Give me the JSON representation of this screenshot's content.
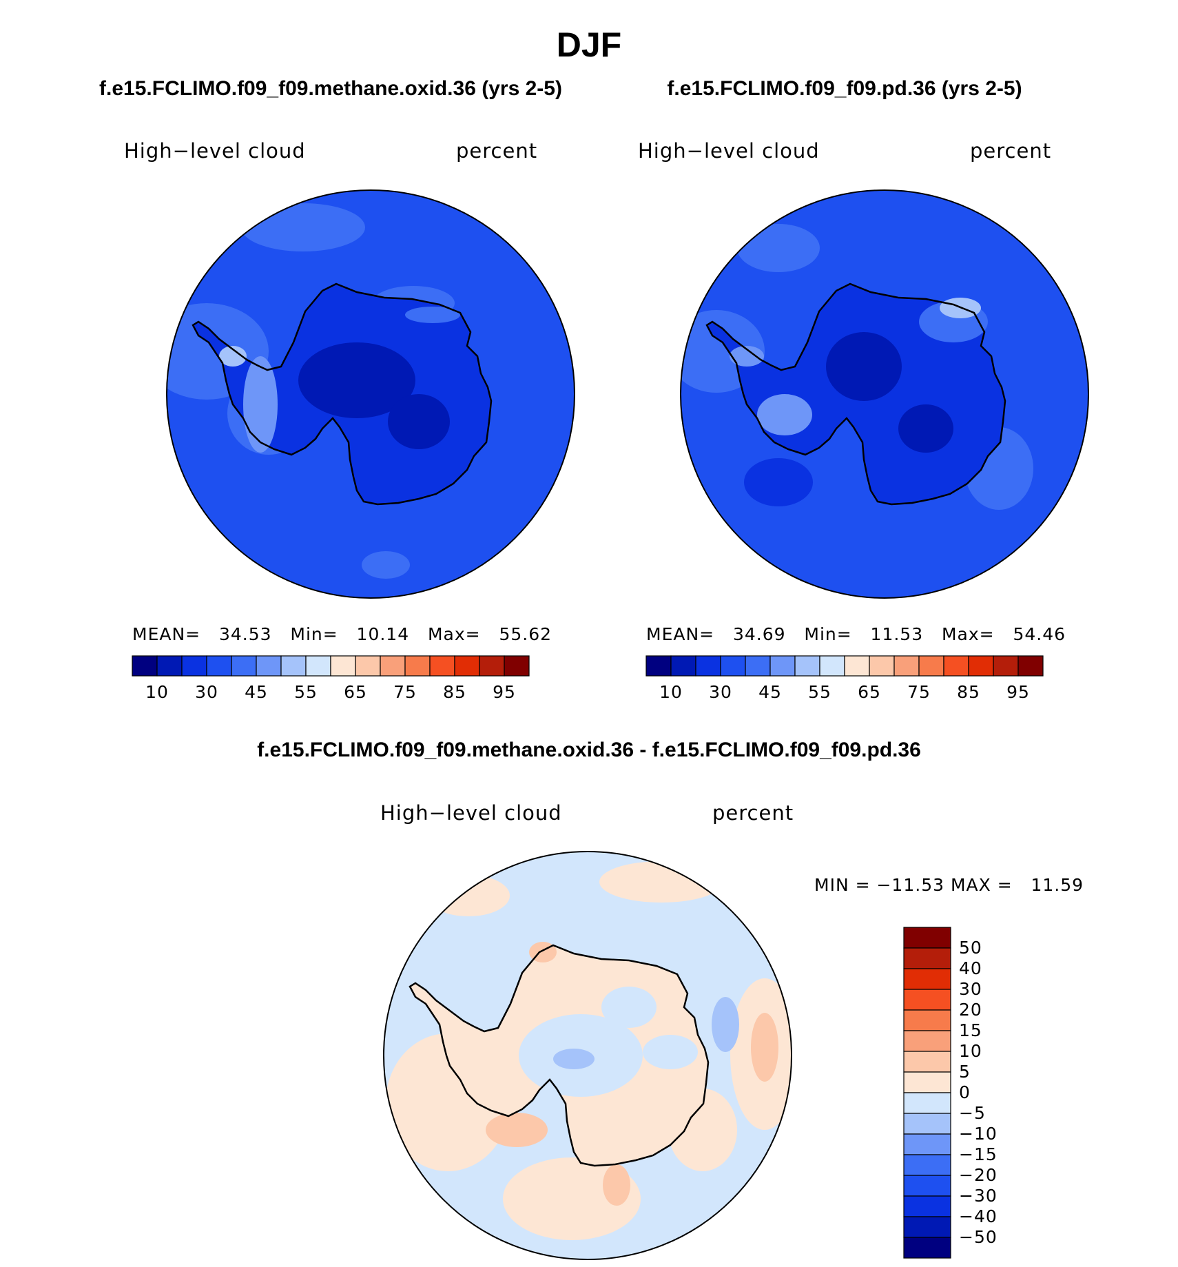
{
  "page_title": "DJF",
  "panels": [
    {
      "title": "f.e15.FCLIMO.f09_f09.methane.oxid.36 (yrs 2-5)",
      "variable": "High−level cloud",
      "units": "percent",
      "stats": {
        "mean_label": "MEAN=",
        "mean": "34.53",
        "min_label": "Min=",
        "min": "10.14",
        "max_label": "Max=",
        "max": "55.62"
      }
    },
    {
      "title": "f.e15.FCLIMO.f09_f09.pd.36 (yrs 2-5)",
      "variable": "High−level cloud",
      "units": "percent",
      "stats": {
        "mean_label": "MEAN=",
        "mean": "34.69",
        "min_label": "Min=",
        "min": "11.53",
        "max_label": "Max=",
        "max": "54.46"
      }
    }
  ],
  "abs_colorbar": {
    "colors": [
      "#000080",
      "#0019b4",
      "#0a32e1",
      "#1e50f0",
      "#3c6ef5",
      "#6e96f8",
      "#a5c3fa",
      "#d2e6fc",
      "#fde6d4",
      "#fcc8aa",
      "#f9a07a",
      "#f77b4b",
      "#f55022",
      "#e12d05",
      "#b41e0a",
      "#800000"
    ],
    "tick_labels": [
      "10",
      "30",
      "45",
      "55",
      "65",
      "75",
      "85",
      "95"
    ]
  },
  "diff_panel": {
    "title": "f.e15.FCLIMO.f09_f09.methane.oxid.36 - f.e15.FCLIMO.f09_f09.pd.36",
    "variable": "High−level cloud",
    "units": "percent",
    "minmax_text": "MIN = −11.53 MAX =   11.59"
  },
  "diff_colorbar": {
    "colors": [
      "#800000",
      "#b41e0a",
      "#e12d05",
      "#f55022",
      "#f77b4b",
      "#f9a07a",
      "#fcc8aa",
      "#fde6d4",
      "#d2e6fc",
      "#a5c3fa",
      "#6e96f8",
      "#3c6ef5",
      "#1e50f0",
      "#0a32e1",
      "#0019b4",
      "#000080"
    ],
    "tick_labels": [
      "50",
      "40",
      "30",
      "20",
      "15",
      "10",
      "5",
      "0",
      "−5",
      "−10",
      "−15",
      "−20",
      "−30",
      "−40",
      "−50"
    ]
  },
  "map_colors": {
    "ocean_abs": "#1e50f0",
    "level_40": "#3c6ef5",
    "level_25": "#0a32e1",
    "level_15": "#0019b4",
    "light_50": "#6e96f8",
    "diff_neg": "#d2e6fc",
    "diff_pos": "#fde6d4",
    "diff_pos2": "#fcc8aa",
    "diff_neg2": "#a5c3fa",
    "coast": "#000000"
  }
}
